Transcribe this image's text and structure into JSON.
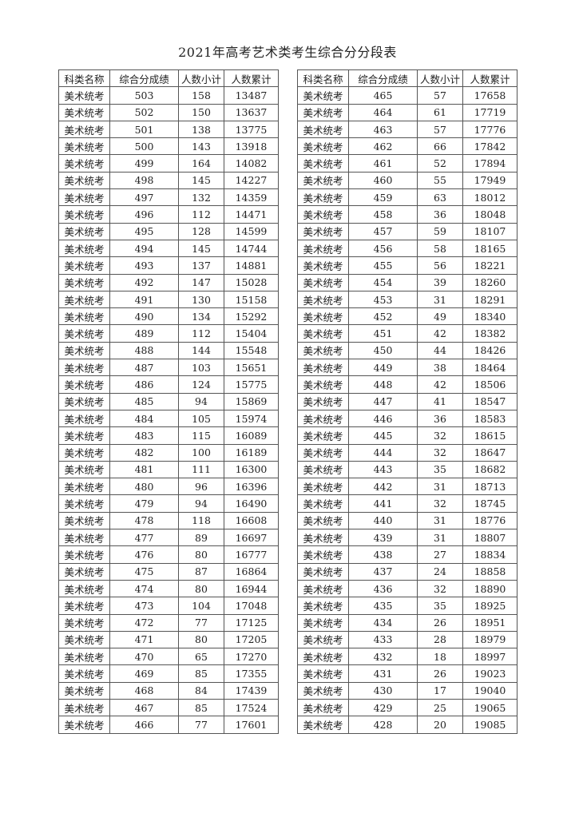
{
  "title": "2021年高考艺术类考生综合分分段表",
  "headers": [
    "科类名称",
    "综合分成绩",
    "人数小计",
    "人数累计"
  ],
  "left_table": [
    [
      "美术统考",
      "503",
      "158",
      "13487"
    ],
    [
      "美术统考",
      "502",
      "150",
      "13637"
    ],
    [
      "美术统考",
      "501",
      "138",
      "13775"
    ],
    [
      "美术统考",
      "500",
      "143",
      "13918"
    ],
    [
      "美术统考",
      "499",
      "164",
      "14082"
    ],
    [
      "美术统考",
      "498",
      "145",
      "14227"
    ],
    [
      "美术统考",
      "497",
      "132",
      "14359"
    ],
    [
      "美术统考",
      "496",
      "112",
      "14471"
    ],
    [
      "美术统考",
      "495",
      "128",
      "14599"
    ],
    [
      "美术统考",
      "494",
      "145",
      "14744"
    ],
    [
      "美术统考",
      "493",
      "137",
      "14881"
    ],
    [
      "美术统考",
      "492",
      "147",
      "15028"
    ],
    [
      "美术统考",
      "491",
      "130",
      "15158"
    ],
    [
      "美术统考",
      "490",
      "134",
      "15292"
    ],
    [
      "美术统考",
      "489",
      "112",
      "15404"
    ],
    [
      "美术统考",
      "488",
      "144",
      "15548"
    ],
    [
      "美术统考",
      "487",
      "103",
      "15651"
    ],
    [
      "美术统考",
      "486",
      "124",
      "15775"
    ],
    [
      "美术统考",
      "485",
      "94",
      "15869"
    ],
    [
      "美术统考",
      "484",
      "105",
      "15974"
    ],
    [
      "美术统考",
      "483",
      "115",
      "16089"
    ],
    [
      "美术统考",
      "482",
      "100",
      "16189"
    ],
    [
      "美术统考",
      "481",
      "111",
      "16300"
    ],
    [
      "美术统考",
      "480",
      "96",
      "16396"
    ],
    [
      "美术统考",
      "479",
      "94",
      "16490"
    ],
    [
      "美术统考",
      "478",
      "118",
      "16608"
    ],
    [
      "美术统考",
      "477",
      "89",
      "16697"
    ],
    [
      "美术统考",
      "476",
      "80",
      "16777"
    ],
    [
      "美术统考",
      "475",
      "87",
      "16864"
    ],
    [
      "美术统考",
      "474",
      "80",
      "16944"
    ],
    [
      "美术统考",
      "473",
      "104",
      "17048"
    ],
    [
      "美术统考",
      "472",
      "77",
      "17125"
    ],
    [
      "美术统考",
      "471",
      "80",
      "17205"
    ],
    [
      "美术统考",
      "470",
      "65",
      "17270"
    ],
    [
      "美术统考",
      "469",
      "85",
      "17355"
    ],
    [
      "美术统考",
      "468",
      "84",
      "17439"
    ],
    [
      "美术统考",
      "467",
      "85",
      "17524"
    ],
    [
      "美术统考",
      "466",
      "77",
      "17601"
    ]
  ],
  "right_table": [
    [
      "美术统考",
      "465",
      "57",
      "17658"
    ],
    [
      "美术统考",
      "464",
      "61",
      "17719"
    ],
    [
      "美术统考",
      "463",
      "57",
      "17776"
    ],
    [
      "美术统考",
      "462",
      "66",
      "17842"
    ],
    [
      "美术统考",
      "461",
      "52",
      "17894"
    ],
    [
      "美术统考",
      "460",
      "55",
      "17949"
    ],
    [
      "美术统考",
      "459",
      "63",
      "18012"
    ],
    [
      "美术统考",
      "458",
      "36",
      "18048"
    ],
    [
      "美术统考",
      "457",
      "59",
      "18107"
    ],
    [
      "美术统考",
      "456",
      "58",
      "18165"
    ],
    [
      "美术统考",
      "455",
      "56",
      "18221"
    ],
    [
      "美术统考",
      "454",
      "39",
      "18260"
    ],
    [
      "美术统考",
      "453",
      "31",
      "18291"
    ],
    [
      "美术统考",
      "452",
      "49",
      "18340"
    ],
    [
      "美术统考",
      "451",
      "42",
      "18382"
    ],
    [
      "美术统考",
      "450",
      "44",
      "18426"
    ],
    [
      "美术统考",
      "449",
      "38",
      "18464"
    ],
    [
      "美术统考",
      "448",
      "42",
      "18506"
    ],
    [
      "美术统考",
      "447",
      "41",
      "18547"
    ],
    [
      "美术统考",
      "446",
      "36",
      "18583"
    ],
    [
      "美术统考",
      "445",
      "32",
      "18615"
    ],
    [
      "美术统考",
      "444",
      "32",
      "18647"
    ],
    [
      "美术统考",
      "443",
      "35",
      "18682"
    ],
    [
      "美术统考",
      "442",
      "31",
      "18713"
    ],
    [
      "美术统考",
      "441",
      "32",
      "18745"
    ],
    [
      "美术统考",
      "440",
      "31",
      "18776"
    ],
    [
      "美术统考",
      "439",
      "31",
      "18807"
    ],
    [
      "美术统考",
      "438",
      "27",
      "18834"
    ],
    [
      "美术统考",
      "437",
      "24",
      "18858"
    ],
    [
      "美术统考",
      "436",
      "32",
      "18890"
    ],
    [
      "美术统考",
      "435",
      "35",
      "18925"
    ],
    [
      "美术统考",
      "434",
      "26",
      "18951"
    ],
    [
      "美术统考",
      "433",
      "28",
      "18979"
    ],
    [
      "美术统考",
      "432",
      "18",
      "18997"
    ],
    [
      "美术统考",
      "431",
      "26",
      "19023"
    ],
    [
      "美术统考",
      "430",
      "17",
      "19040"
    ],
    [
      "美术统考",
      "429",
      "25",
      "19065"
    ],
    [
      "美术统考",
      "428",
      "20",
      "19085"
    ]
  ]
}
